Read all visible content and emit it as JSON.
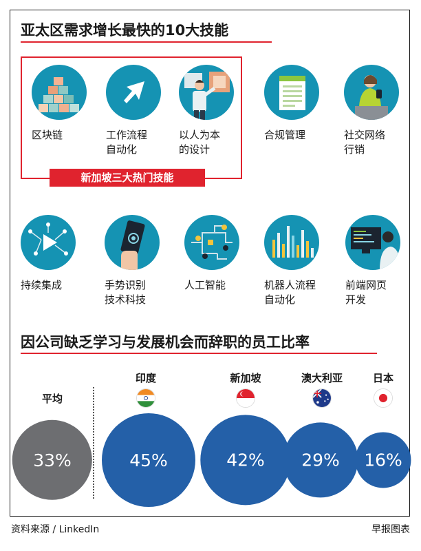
{
  "section1": {
    "title": "亚太区需求增长最快的10大技能"
  },
  "singapore_badge": "新加坡三大热门技能",
  "skills": [
    {
      "label": "区块链",
      "icon": "blocks-icon"
    },
    {
      "label": "工作流程\n自动化",
      "icon": "cursor-arrow-icon"
    },
    {
      "label": "以人为本\n的设计",
      "icon": "designer-icon"
    },
    {
      "label": "合规管理",
      "icon": "document-icon"
    },
    {
      "label": "社交网络\n行销",
      "icon": "person-phone-icon"
    },
    {
      "label": "持续集成",
      "icon": "network-play-icon"
    },
    {
      "label": "手势识别\n技术科技",
      "icon": "hand-phone-icon"
    },
    {
      "label": "人工智能",
      "icon": "circuit-icon"
    },
    {
      "label": "机器人流程\n自动化",
      "icon": "bars-icon"
    },
    {
      "label": "前端网页\n开发",
      "icon": "computer-user-icon"
    }
  ],
  "section2": {
    "title": "因公司缺乏学习与发展机会而辞职的员工比率"
  },
  "chart_data": {
    "type": "bubble",
    "title": "因公司缺乏学习与发展机会而辞职的员工比率",
    "categories": [
      "平均",
      "印度",
      "新加坡",
      "澳大利亚",
      "日本"
    ],
    "values": [
      33,
      45,
      42,
      29,
      16
    ],
    "value_labels": [
      "33%",
      "45%",
      "42%",
      "29%",
      "16%"
    ],
    "unit": "%",
    "colors": {
      "average": "#6d6e71",
      "countries": "#2460a8"
    }
  },
  "footer": {
    "source": "资料来源 / LinkedIn",
    "credit": "早报图表"
  }
}
